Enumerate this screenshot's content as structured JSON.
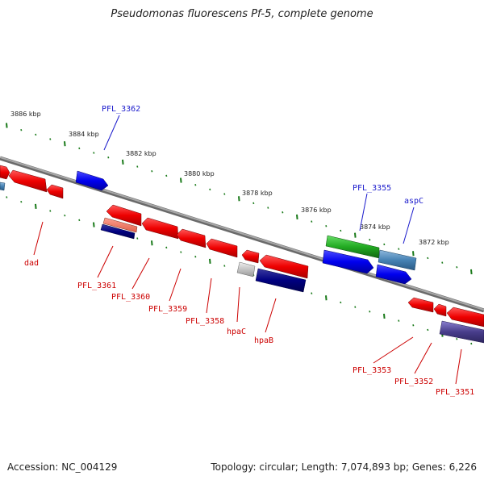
{
  "title": "Pseudomonas fluorescens Pf-5, complete genome",
  "footer": {
    "accession": "Accession: NC_004129",
    "summary": "Topology: circular; Length: 7,074,893 bp; Genes: 6,226"
  },
  "colors": {
    "backbone": "#8a8a8a",
    "tick": "#1a7a1a",
    "label_red": "#cc0000",
    "label_blue": "#1a1acc"
  },
  "kbp_labels": [
    "3886 kbp",
    "3884 kbp",
    "3882 kbp",
    "3880 kbp",
    "3878 kbp",
    "3876 kbp",
    "3874 kbp",
    "3872 kbp"
  ],
  "gene_labels_top": [
    "PFL_3362",
    "PFL_3355",
    "aspC"
  ],
  "gene_labels_bottom": [
    "dad",
    "PFL_3361",
    "PFL_3360",
    "PFL_3359",
    "PFL_3358",
    "hpaC",
    "hpaB",
    "PFL_3353",
    "PFL_3352",
    "PFL_3351"
  ]
}
